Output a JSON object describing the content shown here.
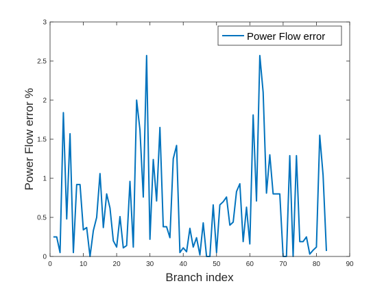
{
  "chart_data": {
    "type": "line",
    "title": "",
    "xlabel": "Branch index",
    "ylabel": "Power Flow error %",
    "xlim": [
      0,
      90
    ],
    "ylim": [
      0,
      3
    ],
    "xticks": [
      0,
      10,
      20,
      30,
      40,
      50,
      60,
      70,
      80,
      90
    ],
    "yticks": [
      0,
      0.5,
      1,
      1.5,
      2,
      2.5,
      3
    ],
    "xtick_labels": [
      "0",
      "10",
      "20",
      "30",
      "40",
      "50",
      "60",
      "70",
      "80",
      "90"
    ],
    "ytick_labels": [
      "0",
      "0.5",
      "1",
      "1.5",
      "2",
      "2.5",
      "3"
    ],
    "grid": false,
    "legend_position": "top-right",
    "series": [
      {
        "name": "Power Flow error",
        "color": "#0072BD",
        "x": [
          1,
          2,
          3,
          4,
          5,
          6,
          7,
          8,
          9,
          10,
          11,
          12,
          13,
          14,
          15,
          16,
          17,
          18,
          19,
          20,
          21,
          22,
          23,
          24,
          25,
          26,
          27,
          28,
          29,
          30,
          31,
          32,
          33,
          34,
          35,
          36,
          37,
          38,
          39,
          40,
          41,
          42,
          43,
          44,
          45,
          46,
          47,
          48,
          49,
          50,
          51,
          52,
          53,
          54,
          55,
          56,
          57,
          58,
          59,
          60,
          61,
          62,
          63,
          64,
          65,
          66,
          67,
          68,
          69,
          70,
          71,
          72,
          73,
          74,
          75,
          76,
          77,
          78,
          79,
          80,
          81,
          82,
          83
        ],
        "values": [
          0.25,
          0.25,
          0.05,
          1.84,
          0.48,
          1.57,
          0.05,
          0.92,
          0.92,
          0.34,
          0.37,
          0.0,
          0.33,
          0.5,
          1.06,
          0.37,
          0.8,
          0.62,
          0.2,
          0.12,
          0.51,
          0.11,
          0.14,
          0.96,
          0.12,
          2.0,
          1.62,
          0.76,
          2.57,
          0.22,
          1.24,
          0.71,
          1.65,
          0.38,
          0.38,
          0.24,
          1.25,
          1.42,
          0.05,
          0.11,
          0.06,
          0.36,
          0.12,
          0.24,
          0.02,
          0.43,
          0.0,
          0.0,
          0.66,
          0.05,
          0.66,
          0.7,
          0.76,
          0.4,
          0.44,
          0.83,
          0.93,
          0.19,
          0.63,
          0.16,
          1.81,
          0.71,
          2.57,
          2.1,
          0.81,
          1.3,
          0.8,
          0.8,
          0.8,
          0.0,
          0.0,
          1.29,
          0.0,
          1.29,
          0.19,
          0.19,
          0.25,
          0.03,
          0.08,
          0.12,
          1.55,
          1.04,
          0.07
        ]
      }
    ]
  }
}
